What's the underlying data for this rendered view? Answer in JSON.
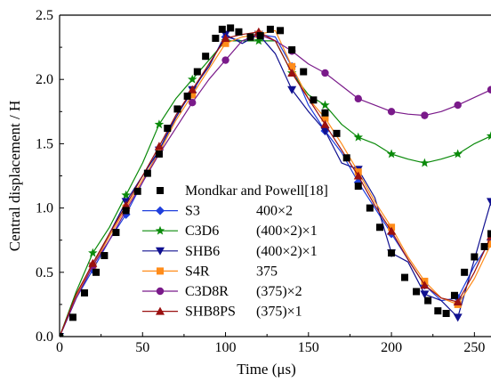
{
  "chart_data": {
    "type": "line",
    "xlabel": "Time (μs)",
    "ylabel": "Central displacement / H",
    "xlim": [
      0,
      260
    ],
    "ylim": [
      0,
      2.5
    ],
    "x_ticks": [
      "0",
      "50",
      "100",
      "150",
      "200",
      "250"
    ],
    "y_ticks": [
      "0.0",
      "0.5",
      "1.0",
      "1.5",
      "2.0",
      "2.5"
    ],
    "legend_position": "bottom-center",
    "reference": {
      "name": "Mondkar and Powell[18]",
      "params": "",
      "color": "#000000",
      "marker": "square",
      "x": [
        0,
        8,
        15,
        22,
        27,
        34,
        40,
        47,
        53,
        60,
        65,
        71,
        77,
        83,
        88,
        94,
        98,
        103,
        108,
        115,
        121,
        127,
        133,
        140,
        147,
        153,
        160,
        167,
        173,
        180,
        187,
        193,
        200,
        208,
        215,
        222,
        228,
        233,
        238,
        244,
        250,
        256,
        260
      ],
      "y": [
        0.0,
        0.15,
        0.34,
        0.5,
        0.63,
        0.81,
        0.98,
        1.13,
        1.27,
        1.42,
        1.62,
        1.77,
        1.87,
        2.06,
        2.18,
        2.32,
        2.39,
        2.4,
        2.37,
        2.33,
        2.34,
        2.39,
        2.38,
        2.23,
        2.06,
        1.84,
        1.74,
        1.58,
        1.39,
        1.17,
        1.0,
        0.85,
        0.65,
        0.46,
        0.35,
        0.28,
        0.2,
        0.18,
        0.32,
        0.5,
        0.62,
        0.7,
        0.8
      ]
    },
    "series": [
      {
        "name": "S3",
        "params": "400×2",
        "color": "#1f3fdd",
        "marker": "diamond",
        "x": [
          0,
          10,
          20,
          30,
          40,
          50,
          60,
          70,
          80,
          90,
          100,
          110,
          120,
          130,
          140,
          150,
          160,
          170,
          180,
          190,
          200,
          210,
          220,
          230,
          240,
          250,
          260
        ],
        "y": [
          0.0,
          0.3,
          0.52,
          0.75,
          0.95,
          1.2,
          1.45,
          1.72,
          1.9,
          2.12,
          2.33,
          2.3,
          2.35,
          2.33,
          2.1,
          1.8,
          1.6,
          1.43,
          1.2,
          1.0,
          0.8,
          0.6,
          0.4,
          0.28,
          0.3,
          0.55,
          0.75
        ]
      },
      {
        "name": "C3D6",
        "params": "(400×2)×1",
        "color": "#0a8a0a",
        "marker": "star",
        "x": [
          0,
          10,
          20,
          30,
          40,
          50,
          60,
          70,
          80,
          90,
          100,
          110,
          120,
          130,
          140,
          150,
          160,
          170,
          180,
          190,
          200,
          210,
          220,
          230,
          240,
          250,
          260
        ],
        "y": [
          0.0,
          0.35,
          0.65,
          0.85,
          1.1,
          1.35,
          1.65,
          1.85,
          2.0,
          2.15,
          2.3,
          2.3,
          2.3,
          2.3,
          2.05,
          1.88,
          1.8,
          1.65,
          1.55,
          1.5,
          1.42,
          1.38,
          1.35,
          1.38,
          1.42,
          1.5,
          1.56
        ]
      },
      {
        "name": "SHB6",
        "params": "(400×2)×1",
        "color": "#101090",
        "marker": "triangle-down",
        "x": [
          0,
          10,
          20,
          30,
          40,
          50,
          60,
          70,
          80,
          90,
          100,
          110,
          120,
          130,
          140,
          150,
          160,
          170,
          180,
          190,
          200,
          210,
          220,
          230,
          240,
          250,
          260
        ],
        "y": [
          0.0,
          0.3,
          0.55,
          0.8,
          1.05,
          1.25,
          1.45,
          1.7,
          1.92,
          2.1,
          2.35,
          2.28,
          2.35,
          2.2,
          1.92,
          1.75,
          1.6,
          1.35,
          1.3,
          1.08,
          0.65,
          0.58,
          0.33,
          0.28,
          0.15,
          0.6,
          1.05
        ]
      },
      {
        "name": "S4R",
        "params": "375",
        "color": "#ff8c1a",
        "marker": "square",
        "x": [
          0,
          10,
          20,
          30,
          40,
          50,
          60,
          70,
          80,
          90,
          100,
          110,
          120,
          130,
          140,
          150,
          160,
          170,
          180,
          190,
          200,
          210,
          220,
          230,
          240,
          250,
          260
        ],
        "y": [
          0.0,
          0.32,
          0.55,
          0.78,
          1.0,
          1.22,
          1.43,
          1.68,
          1.88,
          2.08,
          2.28,
          2.33,
          2.35,
          2.38,
          2.1,
          1.85,
          1.7,
          1.5,
          1.28,
          1.05,
          0.85,
          0.62,
          0.43,
          0.3,
          0.25,
          0.45,
          0.72
        ]
      },
      {
        "name": "C3D8R",
        "params": "(375)×2",
        "color": "#7a1a8a",
        "marker": "circle",
        "x": [
          0,
          10,
          20,
          30,
          40,
          50,
          60,
          70,
          80,
          90,
          100,
          110,
          120,
          130,
          140,
          150,
          160,
          170,
          180,
          190,
          200,
          210,
          220,
          230,
          240,
          250,
          260
        ],
        "y": [
          0.0,
          0.3,
          0.55,
          0.75,
          0.98,
          1.2,
          1.42,
          1.62,
          1.82,
          2.0,
          2.15,
          2.3,
          2.35,
          2.3,
          2.22,
          2.12,
          2.05,
          1.95,
          1.85,
          1.8,
          1.75,
          1.73,
          1.72,
          1.75,
          1.8,
          1.86,
          1.92
        ]
      },
      {
        "name": "SHB8PS",
        "params": "(375)×1",
        "color": "#9a1010",
        "marker": "triangle-up",
        "x": [
          0,
          10,
          20,
          30,
          40,
          50,
          60,
          70,
          80,
          90,
          100,
          110,
          120,
          130,
          140,
          150,
          160,
          170,
          180,
          190,
          200,
          210,
          220,
          230,
          240,
          250,
          260
        ],
        "y": [
          0.0,
          0.33,
          0.57,
          0.8,
          1.02,
          1.25,
          1.48,
          1.72,
          1.92,
          2.12,
          2.32,
          2.35,
          2.37,
          2.3,
          2.05,
          1.85,
          1.65,
          1.45,
          1.25,
          1.02,
          0.82,
          0.6,
          0.4,
          0.3,
          0.27,
          0.5,
          0.78
        ]
      }
    ]
  }
}
